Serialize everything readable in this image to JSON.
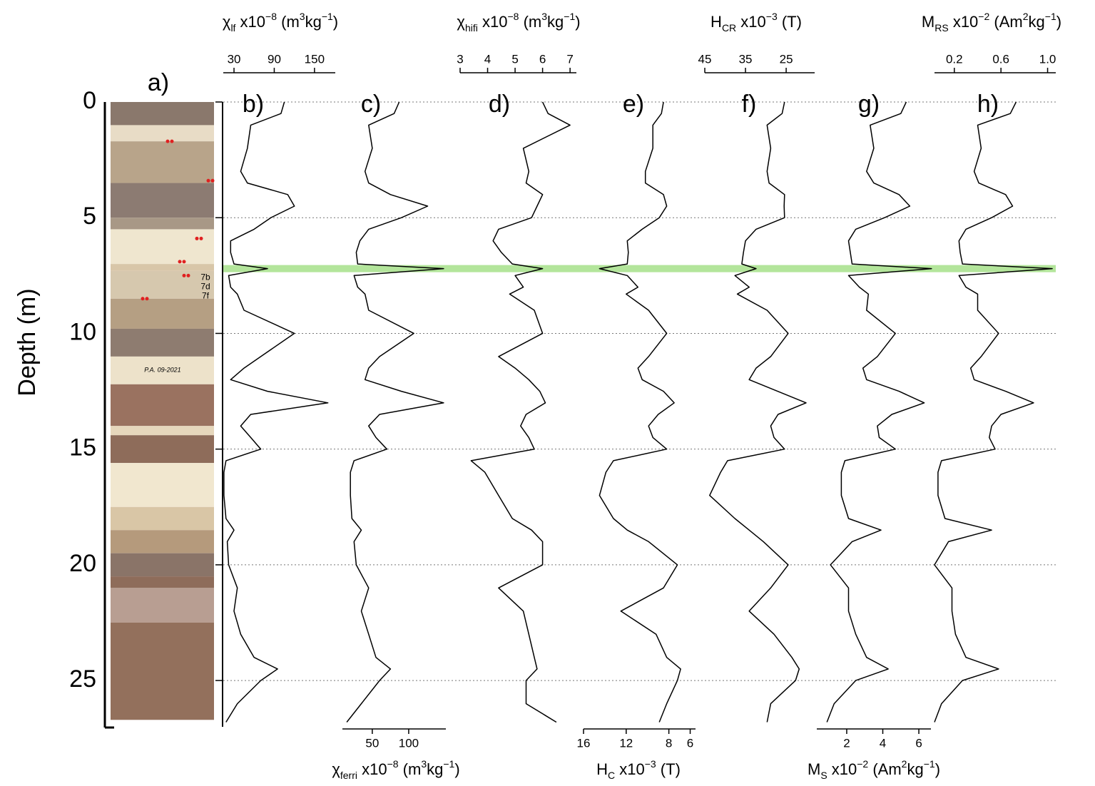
{
  "chart_data": {
    "type": "profile",
    "ylabel": "Depth (m)",
    "ylim": [
      0,
      27
    ],
    "yticks": [
      0,
      5,
      10,
      15,
      20,
      25
    ],
    "grid": true,
    "highlight": {
      "depth": 7.2,
      "color": "#a6e08a"
    },
    "column": {
      "label": "a)",
      "texts": [
        "7b",
        "7d",
        "7f",
        "P.A. 09-2021"
      ]
    },
    "line_color": "#000000",
    "depth": [
      0,
      0.5,
      1,
      2,
      3,
      3.5,
      4,
      4.5,
      5,
      5.5,
      6,
      6.5,
      7,
      7.2,
      7.5,
      8,
      8.3,
      9,
      10,
      11,
      11.5,
      12,
      12.5,
      13,
      13.5,
      14,
      14.5,
      15,
      15.5,
      16,
      17,
      18,
      18.5,
      19,
      20,
      21,
      22,
      23,
      24,
      24.5,
      25,
      26,
      26.8
    ],
    "panels": [
      {
        "label": "b)",
        "axis_side": "top",
        "xlabel": [
          {
            "t": "χ"
          },
          {
            "sub": "lf"
          },
          {
            "t": " x10"
          },
          {
            "sup": "−8"
          },
          {
            "t": " (m"
          },
          {
            "sup": "3"
          },
          {
            "t": "kg"
          },
          {
            "sup": "−1"
          },
          {
            "t": ")"
          }
        ],
        "xlim": [
          14,
          181
        ],
        "xticks": [
          30,
          90,
          150
        ],
        "values": [
          105,
          100,
          55,
          50,
          40,
          50,
          110,
          120,
          85,
          60,
          25,
          25,
          30,
          80,
          22,
          25,
          35,
          45,
          120,
          70,
          45,
          25,
          80,
          170,
          55,
          40,
          55,
          70,
          18,
          15,
          15,
          18,
          30,
          20,
          22,
          35,
          30,
          40,
          60,
          95,
          70,
          35,
          18
        ]
      },
      {
        "label": "c)",
        "axis_side": "bottom",
        "xlabel": [
          {
            "t": "χ"
          },
          {
            "sub": "ferri"
          },
          {
            "t": " x10"
          },
          {
            "sup": "−8"
          },
          {
            "t": " (m"
          },
          {
            "sup": "3"
          },
          {
            "t": "kg"
          },
          {
            "sup": "−1"
          },
          {
            "t": ")"
          }
        ],
        "xlim": [
          9,
          151
        ],
        "xticks": [
          50,
          100
        ],
        "values": [
          87,
          80,
          45,
          50,
          40,
          45,
          75,
          126,
          90,
          45,
          33,
          28,
          30,
          148,
          25,
          30,
          40,
          45,
          107,
          60,
          45,
          40,
          90,
          148,
          60,
          45,
          55,
          70,
          25,
          20,
          20,
          22,
          35,
          25,
          28,
          45,
          35,
          45,
          55,
          75,
          60,
          35,
          15
        ]
      },
      {
        "label": "d)",
        "axis_side": "top",
        "xlabel": [
          {
            "t": "χ"
          },
          {
            "sub": "hifi"
          },
          {
            "t": " x10"
          },
          {
            "sup": "−8"
          },
          {
            "t": " (m"
          },
          {
            "sup": "3"
          },
          {
            "t": "kg"
          },
          {
            "sup": "−1"
          },
          {
            "t": ")"
          }
        ],
        "xlim": [
          3,
          7.23
        ],
        "xticks": [
          3,
          4,
          5,
          6,
          7
        ],
        "values": [
          6.0,
          6.2,
          7.0,
          5.3,
          5.5,
          5.4,
          6.0,
          5.8,
          5.6,
          4.4,
          4.2,
          4.5,
          4.9,
          6.0,
          5.0,
          5.3,
          4.8,
          5.7,
          6.0,
          4.4,
          5.0,
          5.5,
          5.9,
          6.1,
          5.4,
          5.2,
          5.5,
          5.7,
          3.4,
          3.9,
          4.4,
          4.9,
          5.6,
          6.0,
          6.0,
          4.4,
          5.3,
          5.5,
          5.7,
          5.8,
          5.4,
          5.4,
          6.5
        ]
      },
      {
        "label": "e)",
        "axis_side": "bottom",
        "xlabel": [
          {
            "t": "H"
          },
          {
            "sub": "C"
          },
          {
            "t": " x10"
          },
          {
            "sup": "−3"
          },
          {
            "t": " (T)"
          }
        ],
        "xlim": [
          16,
          5.5
        ],
        "xticks": [
          16,
          12,
          8,
          6
        ],
        "values": [
          8.5,
          8.7,
          9.5,
          9.5,
          10.2,
          10.2,
          8.5,
          8.2,
          8.9,
          10.5,
          11.9,
          11.8,
          11.9,
          14.5,
          11.9,
          10.9,
          12,
          9.9,
          8.2,
          9.9,
          10.9,
          10.5,
          8.5,
          7.5,
          9,
          9.9,
          9.5,
          8.2,
          13.2,
          13.9,
          14.5,
          13.2,
          11.9,
          9.9,
          7.2,
          8.5,
          12.5,
          9.2,
          8.2,
          6.9,
          7.2,
          8.2,
          8.9
        ]
      },
      {
        "label": "f)",
        "axis_side": "top",
        "xlabel": [
          {
            "t": "H"
          },
          {
            "sub": "CR"
          },
          {
            "t": " x10"
          },
          {
            "sup": "−3"
          },
          {
            "t": " (T)"
          }
        ],
        "xlim": [
          45,
          18
        ],
        "xticks": [
          45,
          35,
          25
        ],
        "values": [
          25.4,
          26,
          29.7,
          28.8,
          29.7,
          29.2,
          25.4,
          25.5,
          25.4,
          32.4,
          35,
          35.5,
          35.9,
          32.4,
          37.6,
          34.1,
          37,
          29.7,
          24.5,
          28.8,
          32.4,
          34.1,
          27.1,
          20.1,
          27,
          28.8,
          28,
          25.4,
          39.4,
          41.1,
          43.8,
          37.6,
          34.1,
          30.6,
          24.5,
          28.8,
          34.1,
          28,
          23.6,
          21.8,
          22.7,
          28.8,
          29.7
        ]
      },
      {
        "label": "g)",
        "axis_side": "bottom",
        "xlabel": [
          {
            "t": "M"
          },
          {
            "sub": "S"
          },
          {
            "t": " x10"
          },
          {
            "sup": "−2"
          },
          {
            "t": " (Am"
          },
          {
            "sup": "2"
          },
          {
            "t": "kg"
          },
          {
            "sup": "−1"
          },
          {
            "t": ")"
          }
        ],
        "xlim": [
          0.34,
          6.67
        ],
        "xticks": [
          2,
          4,
          6
        ],
        "values": [
          5.3,
          5.0,
          3.3,
          3.5,
          3.1,
          3.5,
          4.9,
          5.5,
          4.1,
          2.5,
          2.1,
          2.2,
          2.3,
          6.7,
          2.1,
          2.7,
          3.2,
          3.1,
          4.7,
          3.7,
          2.9,
          3.1,
          4.9,
          6.3,
          4.5,
          3.7,
          3.8,
          4.7,
          1.9,
          1.7,
          1.7,
          2.1,
          3.9,
          2.3,
          1.1,
          2.1,
          2.1,
          2.5,
          3.1,
          4.3,
          2.5,
          1.3,
          0.9
        ]
      },
      {
        "label": "h)",
        "axis_side": "top",
        "xlabel": [
          {
            "t": "M"
          },
          {
            "sub": "RS"
          },
          {
            "t": " x10"
          },
          {
            "sup": "−2"
          },
          {
            "t": " (Am"
          },
          {
            "sup": "2"
          },
          {
            "t": "kg"
          },
          {
            "sup": "−1"
          },
          {
            "t": ")"
          }
        ],
        "xlim": [
          0.03,
          1.07
        ],
        "xticks": [
          0.2,
          0.6,
          {
            "value": 1,
            "label": "1.0"
          }
        ],
        "values": [
          0.73,
          0.68,
          0.4,
          0.43,
          0.37,
          0.41,
          0.64,
          0.7,
          0.52,
          0.3,
          0.24,
          0.25,
          0.27,
          1.04,
          0.24,
          0.3,
          0.4,
          0.4,
          0.58,
          0.43,
          0.34,
          0.37,
          0.64,
          0.88,
          0.6,
          0.52,
          0.5,
          0.55,
          0.09,
          0.06,
          0.06,
          0.12,
          0.52,
          0.15,
          0.03,
          0.18,
          0.18,
          0.21,
          0.3,
          0.58,
          0.27,
          0.09,
          0.03
        ]
      }
    ]
  }
}
